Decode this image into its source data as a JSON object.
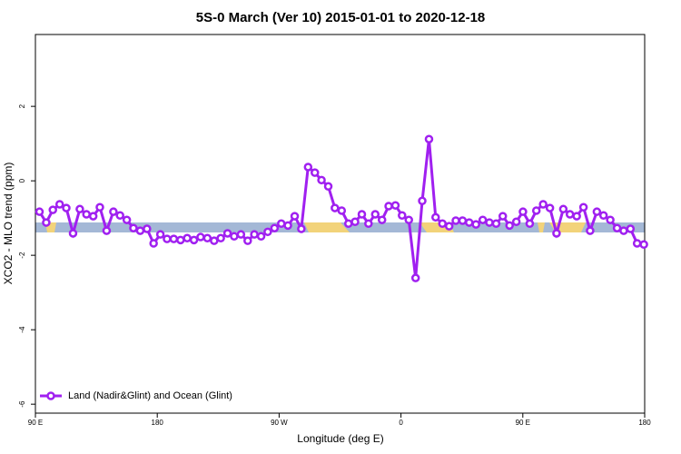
{
  "chart_data": {
    "type": "line",
    "title": "5S-0 March (Ver 10)   2015-01-01 to 2020-12-18",
    "x_label": "Longitude (deg E)",
    "y_label": "XCO2 - MLO trend (ppm)",
    "x": [
      93.0,
      98.0,
      102.9,
      107.9,
      112.8,
      117.8,
      122.8,
      127.7,
      132.7,
      137.6,
      142.6,
      147.6,
      152.5,
      157.5,
      162.4,
      167.4,
      172.4,
      177.3,
      182.3,
      187.2,
      192.2,
      197.2,
      202.1,
      207.1,
      212.0,
      217.0,
      222.0,
      226.9,
      231.9,
      236.8,
      241.8,
      246.8,
      251.7,
      256.7,
      261.6,
      266.6,
      271.6,
      276.5,
      281.5,
      286.4,
      291.4,
      296.4,
      301.3,
      306.3,
      311.2,
      316.2,
      321.2,
      326.1,
      331.1,
      336.0,
      341.0,
      346.0,
      350.9,
      355.9,
      360.8,
      365.8,
      370.8,
      375.7,
      380.7,
      385.6,
      390.6,
      395.6,
      400.5,
      405.5,
      410.4,
      415.4,
      420.4,
      425.3,
      430.3,
      435.2,
      440.2,
      445.2,
      450.1,
      455.1,
      460.0,
      465.0,
      470.0,
      474.9,
      479.9,
      484.8,
      489.8,
      494.8,
      499.7,
      504.7,
      509.6,
      514.6,
      519.6,
      524.5,
      529.5,
      534.4,
      539.4
    ],
    "series": [
      {
        "name": "Land (Nadir&Glint) and Ocean (Glint)",
        "color": "#a020f0",
        "values": [
          -0.83,
          -1.12,
          -0.78,
          -0.63,
          -0.73,
          -1.41,
          -0.76,
          -0.9,
          -0.95,
          -0.71,
          -1.34,
          -0.83,
          -0.93,
          -1.05,
          -1.27,
          -1.34,
          -1.29,
          -1.68,
          -1.44,
          -1.56,
          -1.56,
          -1.59,
          -1.54,
          -1.59,
          -1.51,
          -1.54,
          -1.61,
          -1.54,
          -1.41,
          -1.49,
          -1.44,
          -1.61,
          -1.44,
          -1.49,
          -1.37,
          -1.27,
          -1.15,
          -1.2,
          -0.95,
          -1.29,
          0.37,
          0.22,
          0.02,
          -0.15,
          -0.73,
          -0.8,
          -1.15,
          -1.1,
          -0.9,
          -1.15,
          -0.9,
          -1.05,
          -0.68,
          -0.66,
          -0.93,
          -1.05,
          -2.61,
          -0.54,
          1.12,
          -0.98,
          -1.15,
          -1.22,
          -1.07,
          -1.07,
          -1.12,
          -1.17,
          -1.05,
          -1.12,
          -1.15,
          -0.95,
          -1.2,
          -1.1,
          -0.83,
          -1.15,
          -0.8,
          -0.63,
          -0.73,
          -1.41,
          -0.76,
          -0.9,
          -0.95,
          -0.71,
          -1.34,
          -0.83,
          -0.93,
          -1.05,
          -1.27,
          -1.34,
          -1.29,
          -1.68,
          -1.71
        ]
      }
    ],
    "xlim": [
      90,
      540
    ],
    "xticks": [
      {
        "value": 90,
        "label": "90 E"
      },
      180,
      {
        "value": 270,
        "label": "90 W"
      },
      {
        "value": 360,
        "label": "0"
      },
      {
        "value": 450,
        "label": "90 E"
      },
      {
        "value": 540,
        "label": "180"
      }
    ],
    "ylim": [
      -6.24,
      3.93
    ],
    "yticks": [
      -6,
      -4,
      -2,
      0,
      2
    ],
    "legend": "bottom-left"
  }
}
